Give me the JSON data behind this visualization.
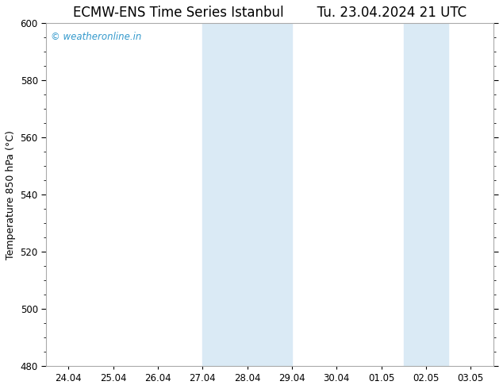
{
  "title_left": "ECMW-ENS Time Series Istanbul",
  "title_right": "Tu. 23.04.2024 21 UTC",
  "ylabel": "Temperature 850 hPa (°C)",
  "ylim": [
    480,
    600
  ],
  "yticks": [
    480,
    500,
    520,
    540,
    560,
    580,
    600
  ],
  "xtick_labels": [
    "24.04",
    "25.04",
    "26.04",
    "27.04",
    "28.04",
    "29.04",
    "30.04",
    "01.05",
    "02.05",
    "03.05"
  ],
  "xtick_positions": [
    0,
    1,
    2,
    3,
    4,
    5,
    6,
    7,
    8,
    9
  ],
  "xlim": [
    -0.5,
    9.5
  ],
  "shade_bands": [
    {
      "x_start": 3.0,
      "x_end": 5.0,
      "color": "#daeaf5"
    },
    {
      "x_start": 7.5,
      "x_end": 8.5,
      "color": "#daeaf5"
    }
  ],
  "watermark_text": "© weatheronline.in",
  "watermark_color": "#3399cc",
  "background_color": "#ffffff",
  "plot_bg_color": "#ffffff",
  "border_color": "#888888",
  "title_fontsize": 12,
  "label_fontsize": 9,
  "tick_fontsize": 8.5
}
